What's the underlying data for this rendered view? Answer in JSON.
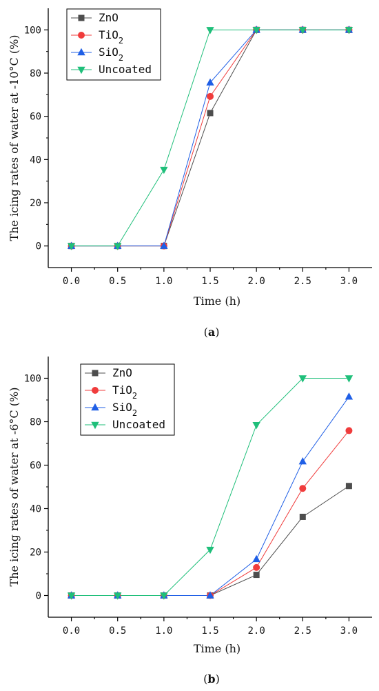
{
  "colors": {
    "ZnO": "#4d4d4d",
    "TiO2": "#f03c3c",
    "SiO2": "#1f5fe6",
    "Uncoated": "#1fbf7a"
  },
  "chart_data": [
    {
      "type": "line",
      "panel_label": "(a)",
      "panel_letter": "a",
      "xlabel": "Time (h)",
      "ylabel": "The icing rates of water at -10°C (%)",
      "x": [
        0.0,
        0.5,
        1.0,
        1.5,
        2.0,
        2.5,
        3.0
      ],
      "x_tick_labels": [
        "0.0",
        "0.5",
        "1.0",
        "1.5",
        "2.0",
        "2.5",
        "3.0"
      ],
      "y_ticks": [
        0,
        20,
        40,
        60,
        80,
        100
      ],
      "xlim": [
        -0.25,
        3.25
      ],
      "ylim": [
        -10,
        110
      ],
      "grid": false,
      "legend_position": "top-left",
      "series": [
        {
          "name": "ZnO",
          "marker": "square",
          "values": [
            0,
            0,
            0,
            61.5,
            100,
            100,
            100
          ]
        },
        {
          "name": "TiO2",
          "marker": "circle",
          "values": [
            0,
            0,
            0,
            69.2,
            100,
            100,
            100
          ]
        },
        {
          "name": "SiO2",
          "marker": "triangle-up",
          "values": [
            0,
            0,
            0,
            75.6,
            100,
            100,
            100
          ]
        },
        {
          "name": "Uncoated",
          "marker": "triangle-down",
          "values": [
            0,
            0,
            35.3,
            100,
            100,
            100,
            100
          ]
        }
      ]
    },
    {
      "type": "line",
      "panel_label": "(b)",
      "panel_letter": "b",
      "xlabel": "Time (h)",
      "ylabel": "The icing rates of water at -6°C (%)",
      "x": [
        0.0,
        0.5,
        1.0,
        1.5,
        2.0,
        2.5,
        3.0
      ],
      "x_tick_labels": [
        "0.0",
        "0.5",
        "1.0",
        "1.5",
        "2.0",
        "2.5",
        "3.0"
      ],
      "y_ticks": [
        0,
        20,
        40,
        60,
        80,
        100
      ],
      "xlim": [
        -0.25,
        3.25
      ],
      "ylim": [
        -10,
        110
      ],
      "grid": false,
      "legend_position": "top-left",
      "series": [
        {
          "name": "ZnO",
          "marker": "square",
          "values": [
            0,
            0,
            0,
            0,
            9.5,
            36.2,
            50.4
          ]
        },
        {
          "name": "TiO2",
          "marker": "circle",
          "values": [
            0,
            0,
            0,
            0,
            12.9,
            49.3,
            75.9
          ]
        },
        {
          "name": "SiO2",
          "marker": "triangle-up",
          "values": [
            0,
            0,
            0,
            0,
            16.7,
            61.7,
            91.5
          ]
        },
        {
          "name": "Uncoated",
          "marker": "triangle-down",
          "values": [
            0,
            0,
            0,
            21.1,
            78.5,
            100,
            100
          ]
        }
      ]
    }
  ]
}
